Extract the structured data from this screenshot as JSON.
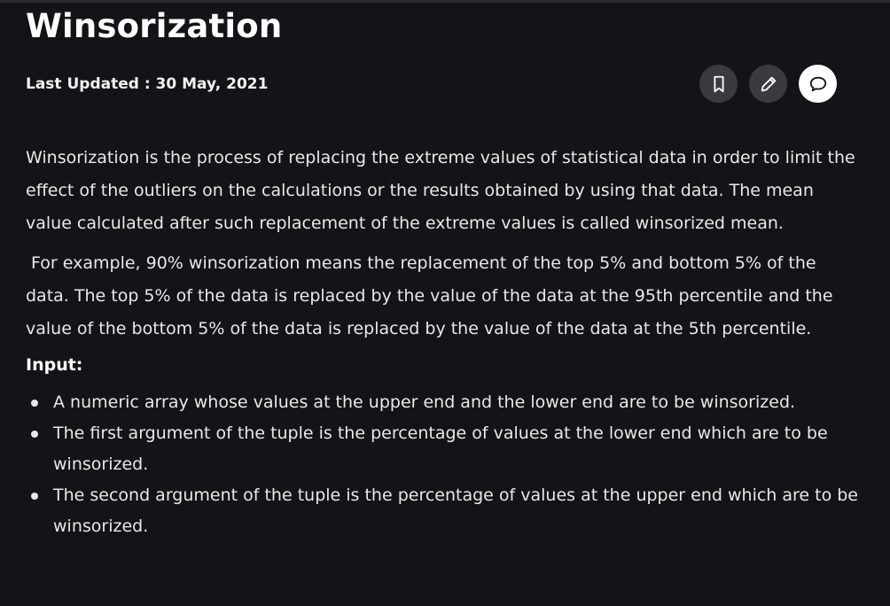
{
  "article": {
    "title": "Winsorization",
    "last_updated": "Last Updated : 30 May, 2021",
    "paragraphs": [
      "Winsorization is the process of replacing the extreme values of statistical data in order to limit the effect of the outliers on the calculations or the results obtained by using that data. The mean value calculated after such replacement of the extreme values is called winsorized mean.",
      " For example, 90% winsorization means the replacement of the top 5% and bottom 5% of the data. The top 5% of the data is replaced by the value of the data at the 95th percentile and the value of the bottom 5% of the data is replaced by the value of the data at the 5th percentile."
    ],
    "input_heading": "Input:",
    "input_items": [
      "A numeric array whose values at the upper end and the lower end are to be winsorized.",
      "The first argument of the tuple is the percentage of values at the lower end which are to be winsorized.",
      "The second argument of the tuple is the percentage of values at the upper end which are to be winsorized."
    ]
  },
  "actions": [
    {
      "icon": "bookmark-icon"
    },
    {
      "icon": "pencil-icon"
    },
    {
      "icon": "comment-icon"
    }
  ],
  "colors": {
    "background": "#131417",
    "button": "#3a3b3f",
    "button_active": "#ffffff",
    "text": "#e8e8e8"
  }
}
